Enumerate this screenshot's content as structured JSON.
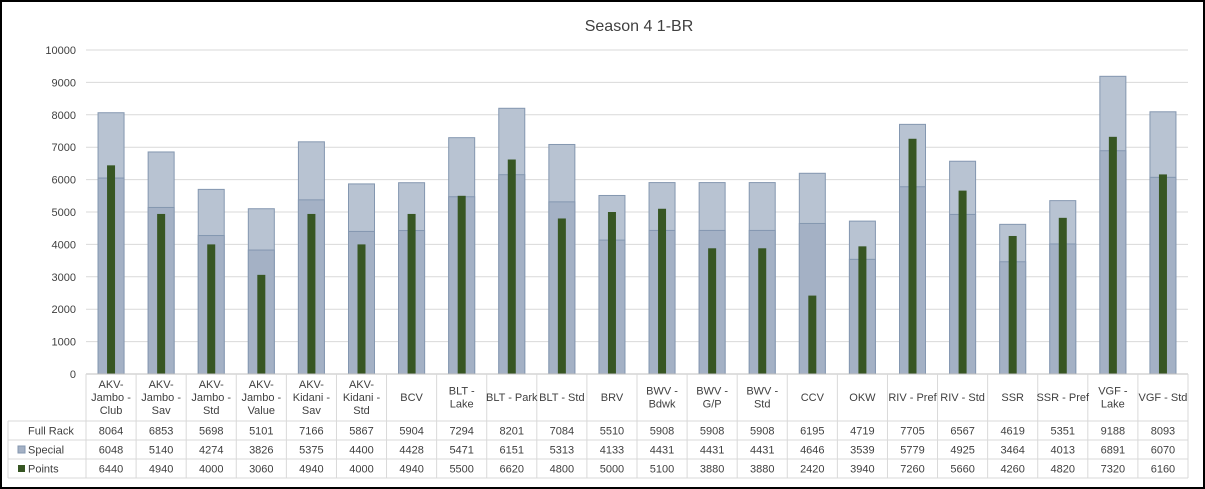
{
  "chart_data": {
    "type": "bar",
    "title": "Season 4 1-BR",
    "xlabel": "",
    "ylabel": "",
    "ylim": [
      0,
      10000
    ],
    "yticks": [
      0,
      1000,
      2000,
      3000,
      4000,
      5000,
      6000,
      7000,
      8000,
      9000,
      10000
    ],
    "grid": true,
    "legend": "data-table",
    "categories": [
      [
        "AKV-",
        "Jambo -",
        "Club"
      ],
      [
        "AKV-",
        "Jambo -",
        "Sav"
      ],
      [
        "AKV-",
        "Jambo -",
        "Std"
      ],
      [
        "AKV-",
        "Jambo -",
        "Value"
      ],
      [
        "AKV-",
        "Kidani -",
        "Sav"
      ],
      [
        "AKV-",
        "Kidani -",
        "Std"
      ],
      [
        "BCV"
      ],
      [
        "BLT -",
        "Lake"
      ],
      [
        "BLT - Park"
      ],
      [
        "BLT - Std"
      ],
      [
        "BRV"
      ],
      [
        "BWV -",
        "Bdwk"
      ],
      [
        "BWV -",
        "G/P"
      ],
      [
        "BWV -",
        "Std"
      ],
      [
        "CCV"
      ],
      [
        "OKW"
      ],
      [
        "RIV - Pref"
      ],
      [
        "RIV - Std"
      ],
      [
        "SSR"
      ],
      [
        "SSR - Pref"
      ],
      [
        "VGF -",
        "Lake"
      ],
      [
        "VGF - Std"
      ]
    ],
    "series": [
      {
        "name": "Full Rack",
        "color": "#b8c3d2",
        "values": [
          8064,
          6853,
          5698,
          5101,
          7166,
          5867,
          5904,
          7294,
          8201,
          7084,
          5510,
          5908,
          5908,
          5908,
          6195,
          4719,
          7705,
          6567,
          4619,
          5351,
          9188,
          8093
        ]
      },
      {
        "name": "Special",
        "color": "#a4b1c5",
        "values": [
          6048,
          5140,
          4274,
          3826,
          5375,
          4400,
          4428,
          5471,
          6151,
          5313,
          4133,
          4431,
          4431,
          4431,
          4646,
          3539,
          5779,
          4925,
          3464,
          4013,
          6891,
          6070
        ]
      },
      {
        "name": "Points",
        "color": "#375623",
        "values": [
          6440,
          4940,
          4000,
          3060,
          4940,
          4000,
          4940,
          5500,
          6620,
          4800,
          5000,
          5100,
          3880,
          3880,
          2420,
          3940,
          7260,
          5660,
          4260,
          4820,
          7320,
          6160
        ]
      }
    ]
  }
}
